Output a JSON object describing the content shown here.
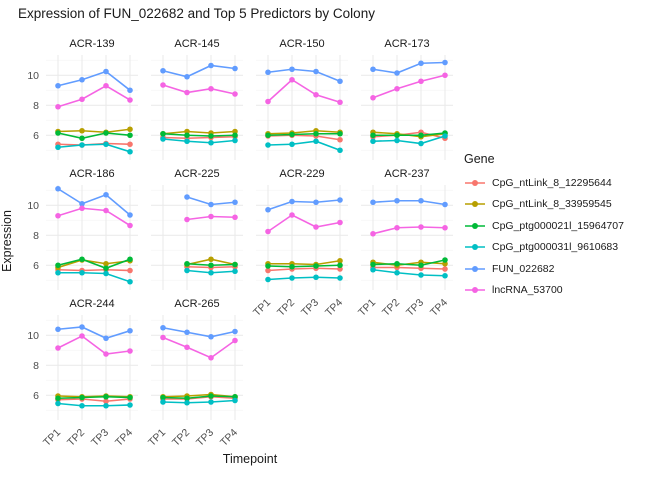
{
  "chart_data": {
    "type": "line",
    "title": "Expression of FUN_022682 and Top 5 Predictors by Colony",
    "xlabel": "Timepoint",
    "ylabel": "Expression",
    "legend_title": "Gene",
    "x_categories": [
      "TP1",
      "TP2",
      "TP3",
      "TP4"
    ],
    "x_tick_rotation": 45,
    "y_ticks": [
      6,
      8,
      10
    ],
    "ylim": [
      4.35,
      11.35
    ],
    "grid": true,
    "legend_position": "right",
    "grid_major_color": "#e9e9e9",
    "grid_minor_color": "#f5f5f5",
    "axis_text_color": "#4d4d4d",
    "text_color": "#1a1a1a",
    "series": [
      {
        "name": "CpG_ntLink_8_12295644",
        "color": "#F8766D"
      },
      {
        "name": "CpG_ntLink_8_33959545",
        "color": "#B79F00"
      },
      {
        "name": "CpG_ptg000021l_15964707",
        "color": "#00BA38"
      },
      {
        "name": "CpG_ptg000031l_9610683",
        "color": "#00BFC4"
      },
      {
        "name": "FUN_022682",
        "color": "#619CFF"
      },
      {
        "name": "lncRNA_53700",
        "color": "#F564E3"
      }
    ],
    "facets": [
      {
        "name": "ACR-139",
        "row": 0,
        "col": 0,
        "values": [
          [
            5.4,
            5.35,
            5.45,
            5.4
          ],
          [
            6.25,
            6.3,
            6.2,
            6.4
          ],
          [
            6.15,
            5.8,
            6.15,
            6.0
          ],
          [
            5.2,
            5.35,
            5.4,
            4.9
          ],
          [
            9.3,
            9.7,
            10.25,
            9.0
          ],
          [
            7.9,
            8.4,
            9.3,
            8.35
          ]
        ]
      },
      {
        "name": "ACR-145",
        "row": 0,
        "col": 1,
        "values": [
          [
            5.85,
            5.8,
            5.85,
            5.9
          ],
          [
            6.1,
            6.25,
            6.15,
            6.25
          ],
          [
            6.1,
            6.0,
            5.95,
            6.0
          ],
          [
            5.75,
            5.6,
            5.5,
            5.65
          ],
          [
            10.3,
            9.9,
            10.65,
            10.45
          ],
          [
            9.35,
            8.85,
            9.1,
            8.75
          ]
        ]
      },
      {
        "name": "ACR-150",
        "row": 0,
        "col": 2,
        "values": [
          [
            5.95,
            6.0,
            5.95,
            5.7
          ],
          [
            6.1,
            6.15,
            6.3,
            6.2
          ],
          [
            6.0,
            6.05,
            6.1,
            6.1
          ],
          [
            5.35,
            5.4,
            5.6,
            5.0
          ],
          [
            10.2,
            10.4,
            10.25,
            9.6
          ],
          [
            8.25,
            9.7,
            8.7,
            8.2
          ]
        ]
      },
      {
        "name": "ACR-173",
        "row": 0,
        "col": 3,
        "values": [
          [
            5.9,
            6.0,
            6.2,
            5.8
          ],
          [
            6.2,
            6.1,
            5.9,
            6.1
          ],
          [
            6.0,
            6.0,
            6.0,
            6.15
          ],
          [
            5.6,
            5.65,
            5.45,
            5.95
          ],
          [
            10.4,
            10.15,
            10.8,
            10.85
          ],
          [
            8.5,
            9.1,
            9.6,
            10.0
          ]
        ]
      },
      {
        "name": "ACR-186",
        "row": 1,
        "col": 0,
        "values": [
          [
            5.7,
            5.65,
            5.7,
            5.65
          ],
          [
            5.85,
            6.35,
            6.1,
            6.3
          ],
          [
            6.0,
            6.4,
            5.8,
            6.4
          ],
          [
            5.5,
            5.5,
            5.45,
            4.9
          ],
          [
            11.1,
            10.1,
            10.7,
            9.35
          ],
          [
            9.3,
            9.8,
            9.65,
            8.65
          ]
        ]
      },
      {
        "name": "ACR-225",
        "row": 1,
        "col": 1,
        "values": [
          [
            null,
            5.9,
            5.85,
            5.9
          ],
          [
            null,
            6.05,
            6.4,
            6.05
          ],
          [
            null,
            6.1,
            6.0,
            6.05
          ],
          [
            null,
            5.65,
            5.5,
            5.6
          ],
          [
            null,
            10.55,
            10.05,
            10.2
          ],
          [
            null,
            9.05,
            9.25,
            9.2
          ]
        ]
      },
      {
        "name": "ACR-229",
        "row": 1,
        "col": 2,
        "values": [
          [
            5.65,
            5.75,
            5.8,
            5.75
          ],
          [
            6.1,
            6.1,
            6.05,
            6.3
          ],
          [
            5.95,
            5.9,
            5.95,
            6.0
          ],
          [
            5.05,
            5.15,
            5.2,
            5.15
          ],
          [
            9.7,
            10.25,
            10.2,
            10.35
          ],
          [
            8.25,
            9.35,
            8.55,
            8.85
          ]
        ]
      },
      {
        "name": "ACR-237",
        "row": 1,
        "col": 3,
        "values": [
          [
            5.85,
            5.85,
            5.8,
            5.75
          ],
          [
            6.2,
            6.0,
            6.2,
            6.1
          ],
          [
            6.05,
            6.1,
            6.0,
            6.35
          ],
          [
            5.7,
            5.5,
            5.35,
            5.3
          ],
          [
            10.2,
            10.3,
            10.3,
            10.05
          ],
          [
            8.1,
            8.5,
            8.55,
            8.5
          ]
        ]
      },
      {
        "name": "ACR-244",
        "row": 2,
        "col": 0,
        "values": [
          [
            5.7,
            5.75,
            5.6,
            5.75
          ],
          [
            5.95,
            5.9,
            5.95,
            5.9
          ],
          [
            5.8,
            5.85,
            5.9,
            5.85
          ],
          [
            5.45,
            5.3,
            5.3,
            5.35
          ],
          [
            10.4,
            10.55,
            9.8,
            10.3
          ],
          [
            9.15,
            9.95,
            8.75,
            8.95
          ]
        ]
      },
      {
        "name": "ACR-265",
        "row": 2,
        "col": 1,
        "values": [
          [
            5.75,
            5.75,
            5.9,
            5.8
          ],
          [
            5.9,
            5.95,
            6.05,
            5.9
          ],
          [
            5.85,
            5.8,
            5.95,
            5.9
          ],
          [
            5.55,
            5.5,
            5.55,
            5.65
          ],
          [
            10.5,
            10.2,
            9.9,
            10.25
          ],
          [
            9.85,
            9.2,
            8.5,
            9.65
          ]
        ]
      }
    ]
  }
}
